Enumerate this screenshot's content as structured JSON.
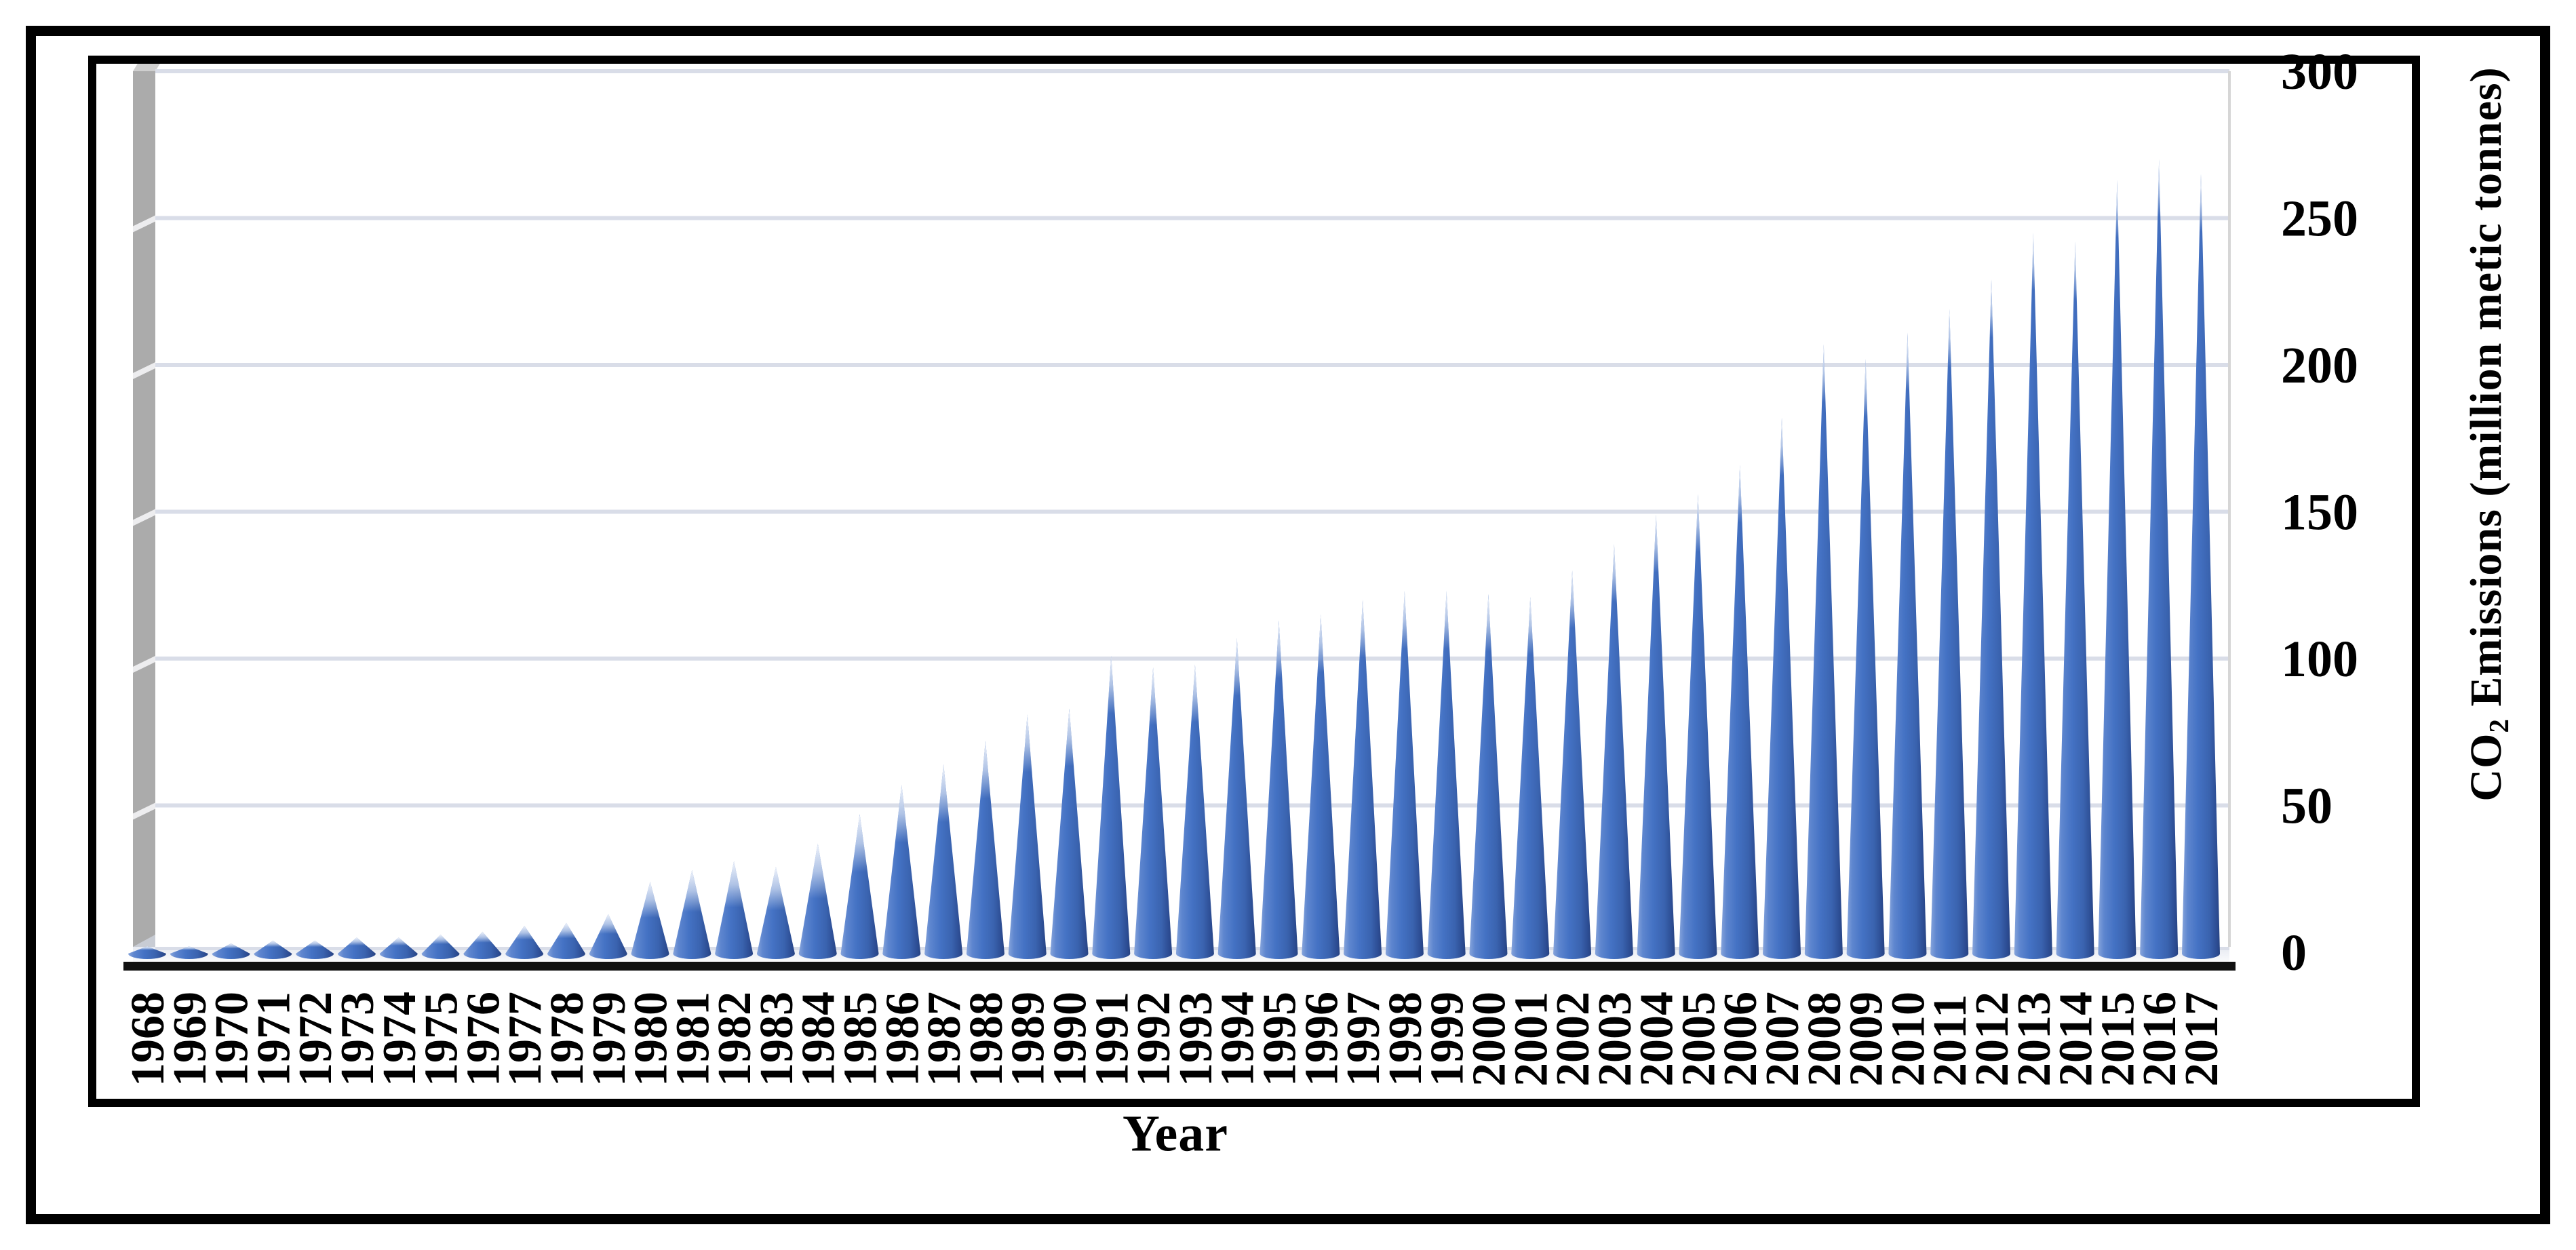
{
  "chart_data": {
    "type": "bar",
    "subtype": "3d-cone-columns",
    "title": "",
    "xlabel": "Year",
    "ylabel": "CO2 Emissions (million metic tonnes)",
    "ylabel_parts": {
      "prefix": "CO",
      "sub": "2",
      "suffix": " Emissions (million metic tonnes)"
    },
    "ylim": [
      0,
      300
    ],
    "yticks": [
      0,
      50,
      100,
      150,
      200,
      250,
      300
    ],
    "grid": true,
    "legend_position": "none",
    "bar_color": "#4472C4",
    "bar_shadow_color": "#2C4C92",
    "bar_highlight_color": "#86A4DB",
    "gridline_color": "#D9DDE8",
    "wall_color": "#ABABAB",
    "categories": [
      "1968",
      "1969",
      "1970",
      "1971",
      "1972",
      "1973",
      "1974",
      "1975",
      "1976",
      "1977",
      "1978",
      "1979",
      "1980",
      "1981",
      "1982",
      "1983",
      "1984",
      "1985",
      "1986",
      "1987",
      "1988",
      "1989",
      "1990",
      "1991",
      "1992",
      "1993",
      "1994",
      "1995",
      "1996",
      "1997",
      "1998",
      "1999",
      "2000",
      "2001",
      "2002",
      "2003",
      "2004",
      "2005",
      "2006",
      "2007",
      "2008",
      "2009",
      "2010",
      "2011",
      "2012",
      "2013",
      "2014",
      "2015",
      "2016",
      "2017"
    ],
    "values": [
      2,
      2,
      3,
      4,
      4,
      5,
      5,
      6,
      7,
      9,
      10,
      13,
      24,
      28,
      31,
      29,
      37,
      47,
      57,
      64,
      72,
      81,
      83,
      101,
      97,
      98,
      107,
      113,
      115,
      120,
      123,
      123,
      122,
      121,
      130,
      139,
      149,
      156,
      166,
      182,
      207,
      202,
      211,
      219,
      229,
      245,
      242,
      263,
      270,
      265
    ]
  }
}
